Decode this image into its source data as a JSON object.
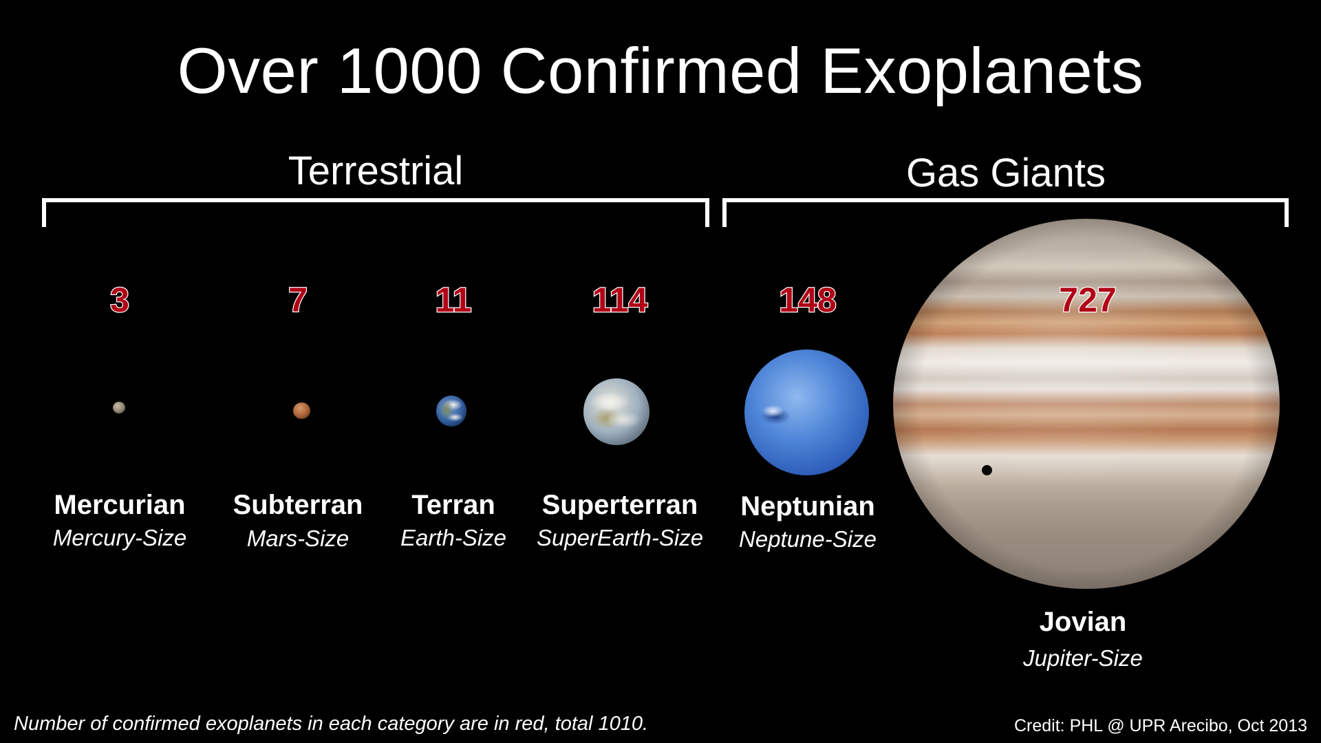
{
  "title": "Over 1000 Confirmed Exoplanets",
  "groups": {
    "terrestrial": "Terrestrial",
    "gas_giants": "Gas Giants"
  },
  "categories": [
    {
      "name": "Mercurian",
      "size_label": "Mercury-Size",
      "count": "3"
    },
    {
      "name": "Subterran",
      "size_label": "Mars-Size",
      "count": "7"
    },
    {
      "name": "Terran",
      "size_label": "Earth-Size",
      "count": "11"
    },
    {
      "name": "Superterran",
      "size_label": "SuperEarth-Size",
      "count": "114"
    },
    {
      "name": "Neptunian",
      "size_label": "Neptune-Size",
      "count": "148"
    },
    {
      "name": "Jovian",
      "size_label": "Jupiter-Size",
      "count": "727"
    }
  ],
  "footnote": "Number of confirmed exoplanets in each category are in red, total 1010.",
  "credit": "Credit: PHL @ UPR Arecibo, Oct 2013",
  "colors": {
    "background": "#000000",
    "count_fill": "#b00016",
    "count_outline": "#ffffff",
    "text": "#ffffff"
  }
}
